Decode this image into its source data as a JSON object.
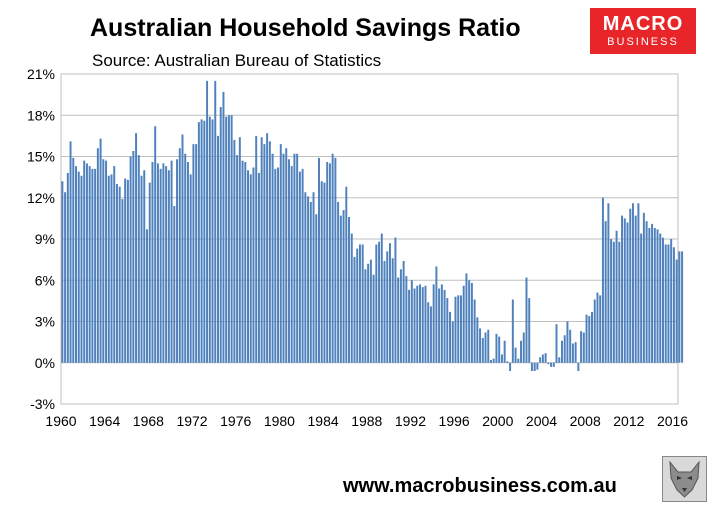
{
  "title": "Australian Household Savings Ratio",
  "subtitle": "Source: Australian Bureau of Statistics",
  "logo": {
    "line1": "MACRO",
    "line2": "BUSINESS"
  },
  "footer_url": "www.macrobusiness.com.au",
  "colors": {
    "bar": "#4f81bd",
    "grid": "#bfbfbf",
    "plot_bg": "#ffffff",
    "logo_bg": "#e8262a"
  },
  "chart_data": {
    "type": "bar",
    "title": "Australian Household Savings Ratio",
    "subtitle": "Source: Australian Bureau of Statistics",
    "frequency": "quarterly",
    "x_start": 1960.0,
    "x_step": 0.25,
    "xlim": [
      1960,
      2016.5
    ],
    "x_ticks": [
      1960,
      1964,
      1968,
      1972,
      1976,
      1980,
      1984,
      1988,
      1992,
      1996,
      2000,
      2004,
      2008,
      2012,
      2016
    ],
    "ylim": [
      -3,
      21
    ],
    "y_ticks": [
      -3,
      0,
      3,
      6,
      9,
      12,
      15,
      18,
      21
    ],
    "y_tick_labels": [
      "-3%",
      "0%",
      "3%",
      "6%",
      "9%",
      "12%",
      "15%",
      "18%",
      "21%"
    ],
    "grid": true,
    "values": [
      13.2,
      12.4,
      13.8,
      16.1,
      14.9,
      14.3,
      13.9,
      13.6,
      14.7,
      14.5,
      14.3,
      14.1,
      14.1,
      15.6,
      16.3,
      14.8,
      14.7,
      13.6,
      13.7,
      14.3,
      13.0,
      12.8,
      11.9,
      13.4,
      13.3,
      15.0,
      15.4,
      16.7,
      15.1,
      13.6,
      14.0,
      9.7,
      13.1,
      14.6,
      17.2,
      14.5,
      14.1,
      14.5,
      14.3,
      14.0,
      14.7,
      11.4,
      14.8,
      15.6,
      16.6,
      15.2,
      14.6,
      13.7,
      15.9,
      15.9,
      17.5,
      17.7,
      17.6,
      20.5,
      17.9,
      17.7,
      20.5,
      16.5,
      18.6,
      19.7,
      17.9,
      18.0,
      18.0,
      16.2,
      15.1,
      16.4,
      14.7,
      14.6,
      14.0,
      13.7,
      14.2,
      16.5,
      13.8,
      16.4,
      15.9,
      16.7,
      16.1,
      15.2,
      14.1,
      14.2,
      15.9,
      15.2,
      15.6,
      14.8,
      14.3,
      15.2,
      15.2,
      13.9,
      14.1,
      12.4,
      12.1,
      11.7,
      12.4,
      10.8,
      14.9,
      13.2,
      13.1,
      14.6,
      14.5,
      15.2,
      14.9,
      11.7,
      10.7,
      11.1,
      12.8,
      10.6,
      9.4,
      7.7,
      8.3,
      8.6,
      8.6,
      6.8,
      7.2,
      7.5,
      6.4,
      8.6,
      8.8,
      9.4,
      7.4,
      8.1,
      8.7,
      7.6,
      9.1,
      6.2,
      6.8,
      7.4,
      6.3,
      5.3,
      6.0,
      5.4,
      5.6,
      5.7,
      5.5,
      5.6,
      4.4,
      4.1,
      5.7,
      7.0,
      5.4,
      5.7,
      5.3,
      4.7,
      3.7,
      3.0,
      4.8,
      4.9,
      4.9,
      5.6,
      6.5,
      6.0,
      5.8,
      4.6,
      3.3,
      2.5,
      1.8,
      2.2,
      2.4,
      0.2,
      0.3,
      2.1,
      1.9,
      0.6,
      1.6,
      0.1,
      -0.6,
      4.6,
      1.1,
      0.3,
      1.6,
      2.2,
      6.2,
      4.7,
      -0.6,
      -0.6,
      -0.5,
      0.4,
      0.6,
      0.7,
      -0.1,
      -0.3,
      -0.3,
      2.8,
      0.4,
      1.6,
      2.0,
      3.0,
      2.4,
      1.4,
      1.5,
      -0.6,
      2.3,
      2.2,
      3.5,
      3.4,
      3.7,
      4.6,
      5.1,
      4.9,
      12.0,
      10.3,
      11.6,
      9.0,
      8.8,
      9.6,
      8.8,
      10.7,
      10.5,
      10.2,
      11.2,
      11.6,
      10.7,
      11.6,
      9.4,
      10.9,
      10.3,
      9.8,
      10.1,
      9.8,
      9.7,
      9.4,
      9.1,
      8.6,
      8.6,
      9.0,
      8.4,
      7.5,
      8.1,
      8.1
    ]
  }
}
